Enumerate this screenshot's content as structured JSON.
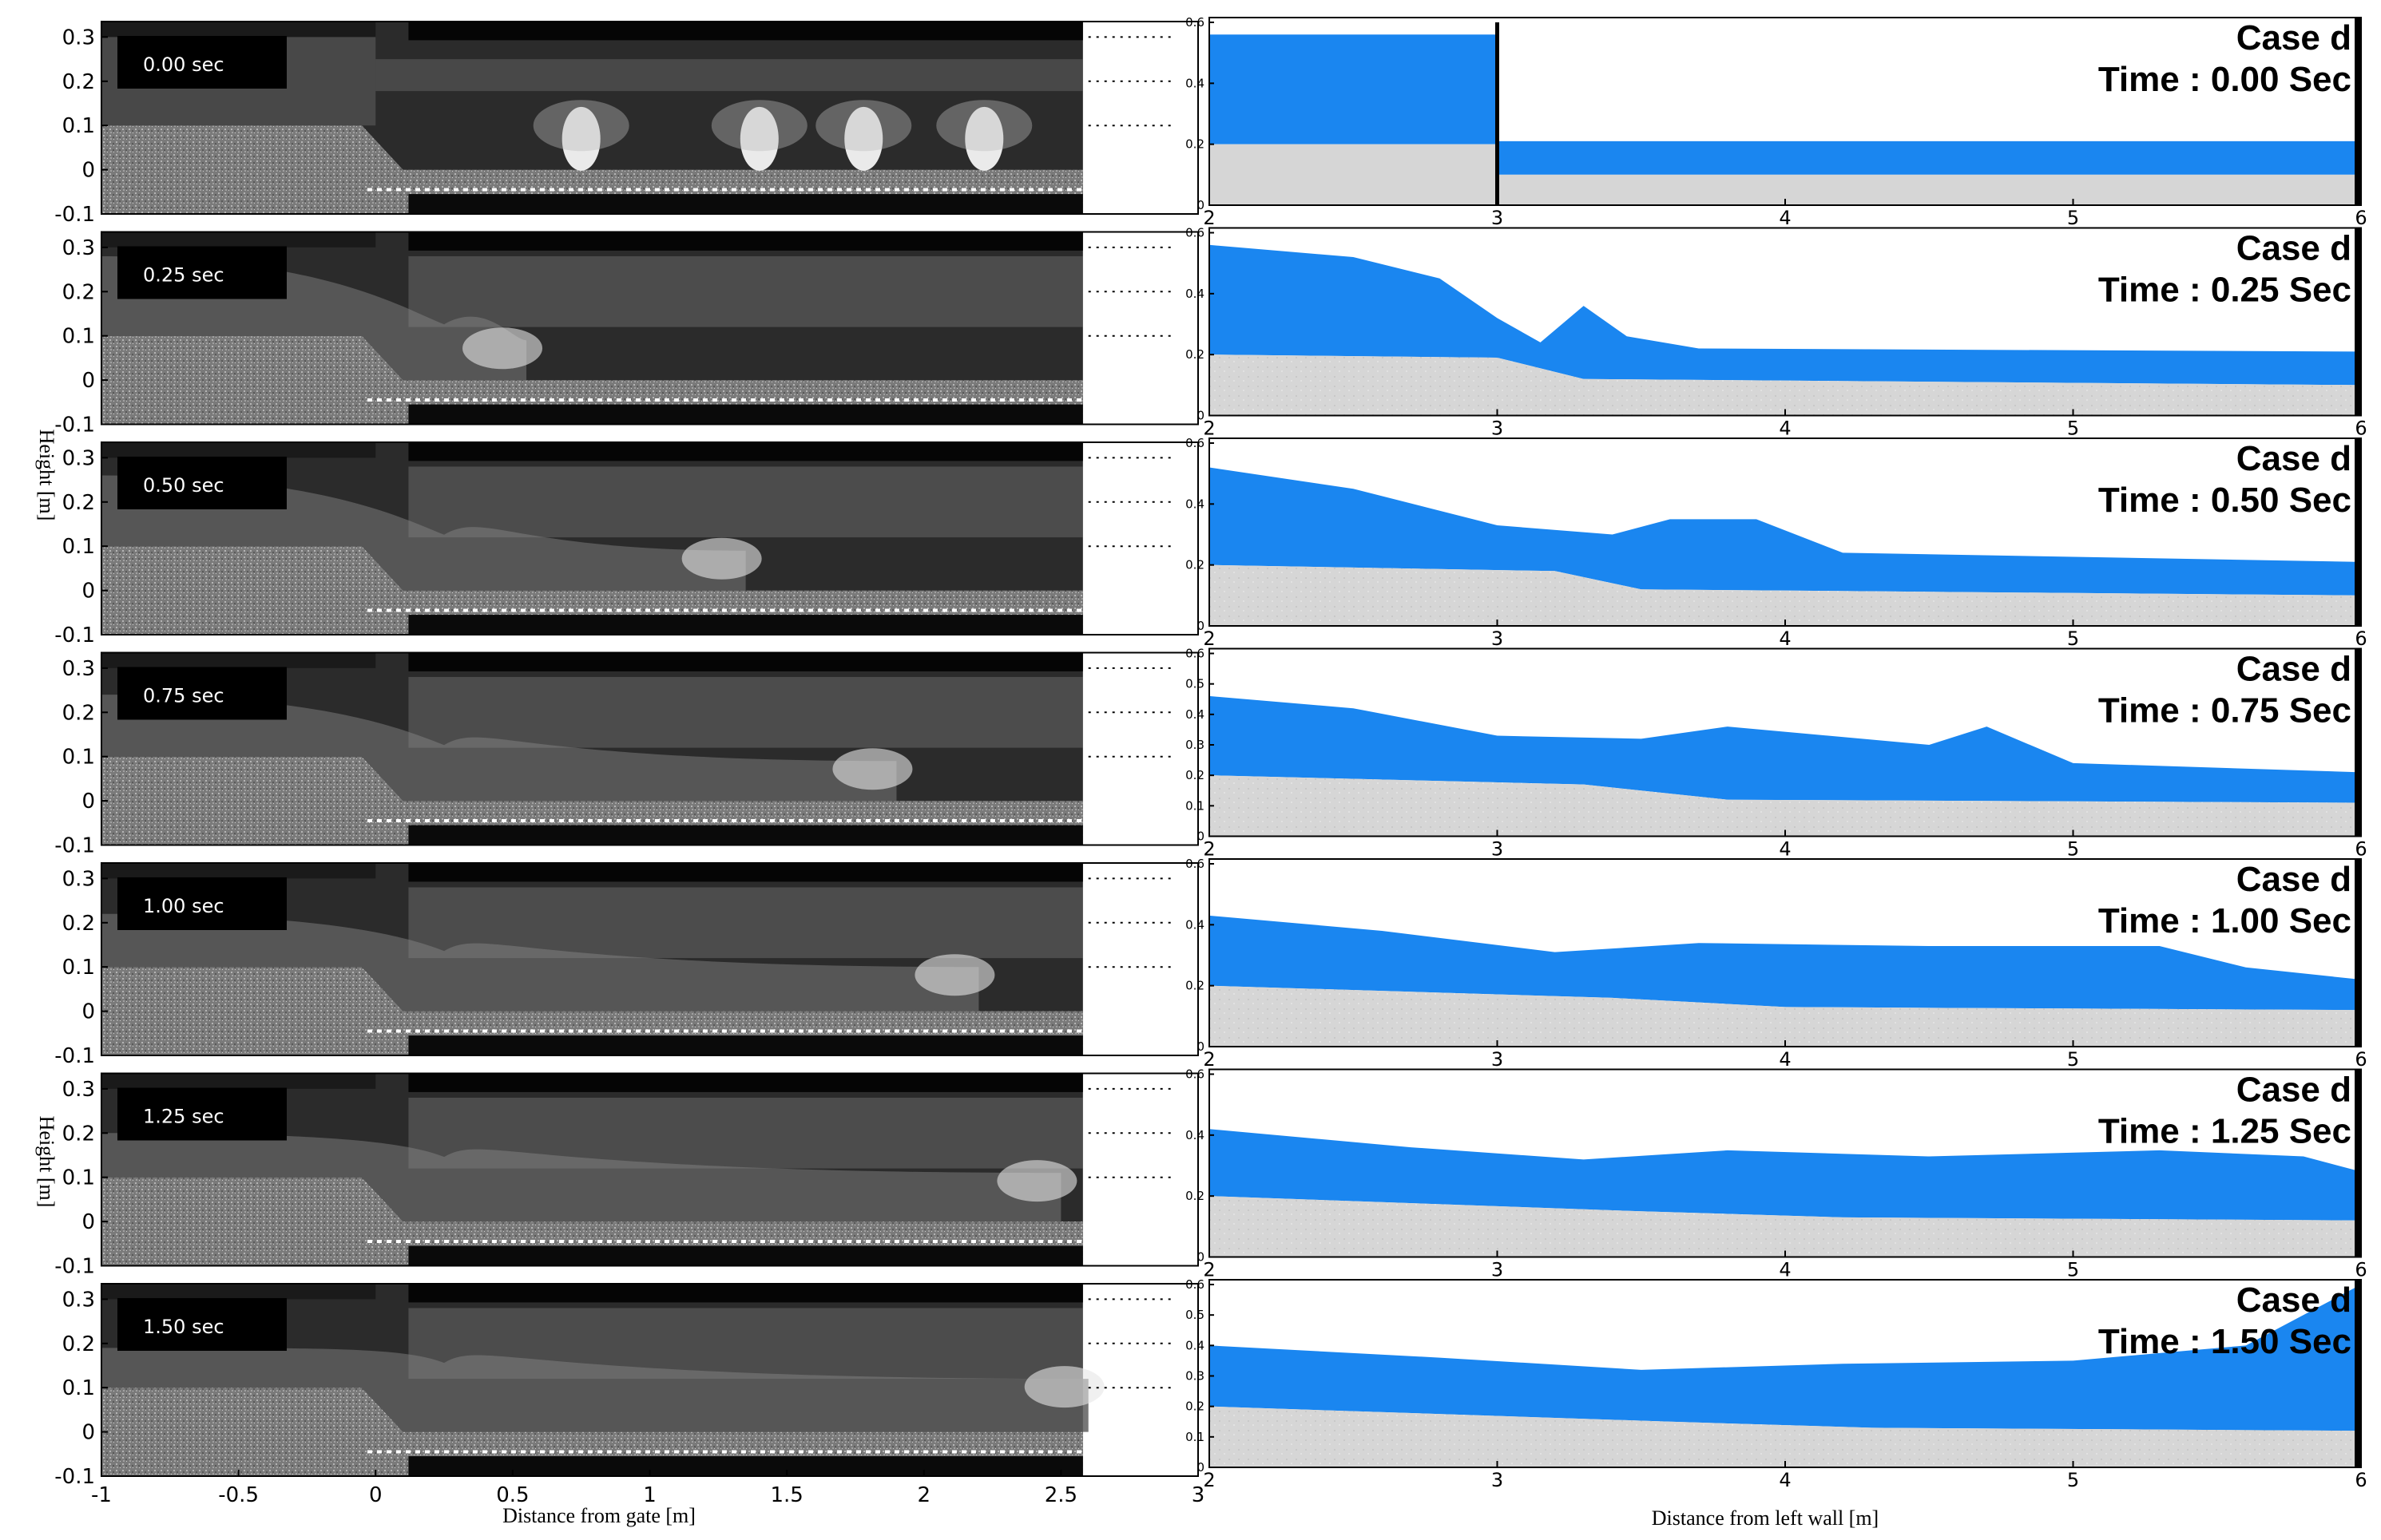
{
  "left_panel": {
    "xlabel": "Distance from gate [m]",
    "ylabel": "Height [m]",
    "y_ticks": [
      "0.3",
      "0.2",
      "0.1",
      "0",
      "-0.1"
    ],
    "x_ticks": [
      "-1",
      "-0.5",
      "0",
      "0.5",
      "1",
      "1.5",
      "2",
      "2.5",
      "3"
    ],
    "frames": [
      {
        "label": "0.00 sec",
        "front": 0.0,
        "water_left": 0.3,
        "water_right": 0.0
      },
      {
        "label": "0.25 sec",
        "front": 0.55,
        "water_left": 0.28,
        "water_right": 0.09
      },
      {
        "label": "0.50 sec",
        "front": 1.35,
        "water_left": 0.26,
        "water_right": 0.09
      },
      {
        "label": "0.75 sec",
        "front": 1.9,
        "water_left": 0.24,
        "water_right": 0.09
      },
      {
        "label": "1.00 sec",
        "front": 2.2,
        "water_left": 0.22,
        "water_right": 0.1
      },
      {
        "label": "1.25 sec",
        "front": 2.5,
        "water_left": 0.2,
        "water_right": 0.11
      },
      {
        "label": "1.50 sec",
        "front": 2.6,
        "water_left": 0.19,
        "water_right": 0.12
      }
    ]
  },
  "right_panel": {
    "xlabel": "Distance from left wall [m]",
    "x_ticks": [
      "2",
      "3",
      "4",
      "5",
      "6"
    ],
    "y_ticks_coarse": [
      "0.6",
      "0.4",
      "0.2",
      "0"
    ],
    "y_ticks_fine": [
      "0.6",
      "0.5",
      "0.4",
      "0.3",
      "0.2",
      "0.1",
      "0"
    ],
    "colors": {
      "water": "#1a86f0",
      "sediment": "#d6d6d6"
    },
    "frames": [
      {
        "case": "Case d",
        "time": "Time : 0.00 Sec",
        "fine_ticks": false
      },
      {
        "case": "Case d",
        "time": "Time : 0.25 Sec",
        "fine_ticks": false
      },
      {
        "case": "Case d",
        "time": "Time : 0.50 Sec",
        "fine_ticks": false
      },
      {
        "case": "Case d",
        "time": "Time : 0.75 Sec",
        "fine_ticks": true
      },
      {
        "case": "Case d",
        "time": "Time : 1.00 Sec",
        "fine_ticks": false
      },
      {
        "case": "Case d",
        "time": "Time : 1.25 Sec",
        "fine_ticks": false
      },
      {
        "case": "Case d",
        "time": "Time : 1.50 Sec",
        "fine_ticks": true
      }
    ]
  }
}
